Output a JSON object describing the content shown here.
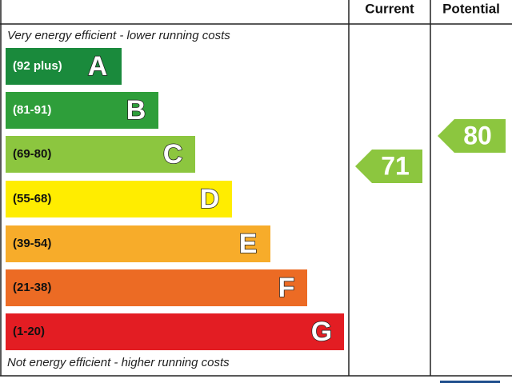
{
  "header": {
    "current": "Current",
    "potential": "Potential"
  },
  "top_note": "Very energy efficient - lower running costs",
  "bottom_note": "Not energy efficient - higher running costs",
  "bands": [
    {
      "range": "(92 plus)",
      "letter": "A"
    },
    {
      "range": "(81-91)",
      "letter": "B"
    },
    {
      "range": "(69-80)",
      "letter": "C"
    },
    {
      "range": "(55-68)",
      "letter": "D"
    },
    {
      "range": "(39-54)",
      "letter": "E"
    },
    {
      "range": "(21-38)",
      "letter": "F"
    },
    {
      "range": "(1-20)",
      "letter": "G"
    }
  ],
  "current": "71",
  "potential": "80"
}
